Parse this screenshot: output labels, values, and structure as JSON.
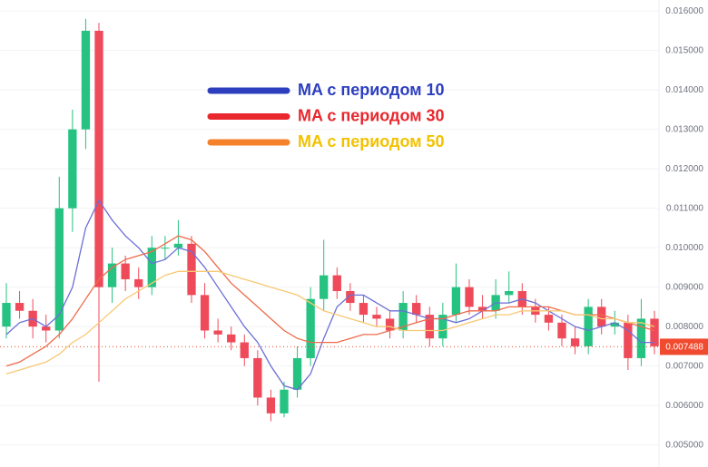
{
  "chart_data": {
    "type": "candlestick",
    "ylim": [
      0.00444,
      0.01628
    ],
    "yticks": [
      {
        "value": 0.005,
        "label": "0.005000"
      },
      {
        "value": 0.006,
        "label": "0.006000"
      },
      {
        "value": 0.007,
        "label": "0.007000"
      },
      {
        "value": 0.008,
        "label": "0.008000"
      },
      {
        "value": 0.009,
        "label": "0.009000"
      },
      {
        "value": 0.01,
        "label": "0.010000"
      },
      {
        "value": 0.011,
        "label": "0.011000"
      },
      {
        "value": 0.012,
        "label": "0.012000"
      },
      {
        "value": 0.013,
        "label": "0.013000"
      },
      {
        "value": 0.014,
        "label": "0.014000"
      },
      {
        "value": 0.015,
        "label": "0.015000"
      },
      {
        "value": 0.016,
        "label": "0.016000"
      }
    ],
    "grid": true,
    "up_color": "#26c281",
    "down_color": "#ef4a5a",
    "open": [
      0.008,
      0.0086,
      0.0084,
      0.008,
      0.0079,
      0.011,
      0.013,
      0.0155,
      0.009,
      0.0096,
      0.0092,
      0.009,
      0.01,
      0.01,
      0.0101,
      0.0088,
      0.0079,
      0.0078,
      0.0076,
      0.0072,
      0.0062,
      0.0058,
      0.0064,
      0.0072,
      0.0087,
      0.0093,
      0.0089,
      0.0086,
      0.0083,
      0.0082,
      0.0079,
      0.0086,
      0.0083,
      0.0077,
      0.0083,
      0.009,
      0.0085,
      0.0084,
      0.0088,
      0.0089,
      0.0085,
      0.0083,
      0.0081,
      0.0077,
      0.0075,
      0.0085,
      0.008,
      0.0081,
      0.0072,
      0.0082
    ],
    "high": [
      0.0091,
      0.0089,
      0.0087,
      0.0083,
      0.0118,
      0.0135,
      0.0158,
      0.0157,
      0.01,
      0.0098,
      0.0095,
      0.0103,
      0.0103,
      0.0107,
      0.0103,
      0.0091,
      0.0082,
      0.008,
      0.0078,
      0.0074,
      0.0064,
      0.0066,
      0.0075,
      0.009,
      0.0102,
      0.0095,
      0.0091,
      0.0088,
      0.0085,
      0.0084,
      0.0089,
      0.0088,
      0.0085,
      0.0086,
      0.0096,
      0.0092,
      0.0088,
      0.0092,
      0.0094,
      0.0091,
      0.0087,
      0.0085,
      0.0083,
      0.008,
      0.0087,
      0.0087,
      0.0084,
      0.0083,
      0.0087,
      0.0084
    ],
    "low": [
      0.0077,
      0.0082,
      0.0077,
      0.0076,
      0.0077,
      0.0104,
      0.0125,
      0.0066,
      0.0086,
      0.0089,
      0.0087,
      0.0088,
      0.0097,
      0.0098,
      0.0086,
      0.0077,
      0.0076,
      0.0074,
      0.007,
      0.006,
      0.0056,
      0.0057,
      0.0062,
      0.007,
      0.0084,
      0.0087,
      0.0084,
      0.0081,
      0.008,
      0.0077,
      0.0077,
      0.0081,
      0.0075,
      0.0075,
      0.0081,
      0.0083,
      0.0082,
      0.0082,
      0.0086,
      0.0083,
      0.0081,
      0.0079,
      0.0075,
      0.0073,
      0.0073,
      0.0078,
      0.0078,
      0.0069,
      0.007,
      0.0073
    ],
    "close": [
      0.0086,
      0.0084,
      0.008,
      0.0079,
      0.011,
      0.013,
      0.0155,
      0.009,
      0.0096,
      0.0092,
      0.009,
      0.01,
      0.01,
      0.0101,
      0.0088,
      0.0079,
      0.0078,
      0.0076,
      0.0072,
      0.0062,
      0.0058,
      0.0064,
      0.0072,
      0.0087,
      0.0093,
      0.0089,
      0.0086,
      0.0083,
      0.0082,
      0.0079,
      0.0086,
      0.0083,
      0.0077,
      0.0083,
      0.009,
      0.0085,
      0.0084,
      0.0088,
      0.0089,
      0.0085,
      0.0083,
      0.0081,
      0.0077,
      0.0075,
      0.0085,
      0.008,
      0.0081,
      0.0072,
      0.0082,
      0.0075
    ],
    "series": [
      {
        "name": "MA с периодом 10",
        "color": "#6b6fd6",
        "legend_color": "#2d3fbf",
        "label_color": "#2d3fbf",
        "values": [
          0.0078,
          0.0081,
          0.0082,
          0.008,
          0.0083,
          0.009,
          0.0105,
          0.0112,
          0.0107,
          0.0103,
          0.01,
          0.0096,
          0.0097,
          0.01,
          0.0099,
          0.0095,
          0.009,
          0.0085,
          0.008,
          0.0076,
          0.007,
          0.0065,
          0.0064,
          0.0068,
          0.0077,
          0.0085,
          0.0088,
          0.0088,
          0.0086,
          0.0084,
          0.0084,
          0.0083,
          0.0082,
          0.0082,
          0.0081,
          0.0082,
          0.0084,
          0.0086,
          0.0086,
          0.0087,
          0.0086,
          0.0084,
          0.0082,
          0.008,
          0.0079,
          0.008,
          0.0081,
          0.0079,
          0.0076,
          0.0076
        ]
      },
      {
        "name": "MA с периодом 30",
        "color": "#ef6a4a",
        "legend_color": "#e8272e",
        "label_color": "#e8272e",
        "values": [
          0.007,
          0.0071,
          0.0073,
          0.0075,
          0.0078,
          0.0082,
          0.0087,
          0.0092,
          0.0095,
          0.0097,
          0.0098,
          0.0099,
          0.0101,
          0.0103,
          0.0102,
          0.0099,
          0.0095,
          0.0091,
          0.0088,
          0.0085,
          0.0082,
          0.0079,
          0.0077,
          0.0076,
          0.0076,
          0.0076,
          0.0077,
          0.0078,
          0.0078,
          0.0079,
          0.008,
          0.0081,
          0.0082,
          0.0082,
          0.0083,
          0.0084,
          0.0084,
          0.0084,
          0.0085,
          0.0085,
          0.0085,
          0.0085,
          0.0084,
          0.0083,
          0.0083,
          0.0083,
          0.0082,
          0.0081,
          0.008,
          0.0079
        ]
      },
      {
        "name": "MA с периодом 50",
        "color": "#f7c873",
        "legend_color": "#f5822a",
        "label_color": "#f2c200",
        "values": [
          0.0068,
          0.0069,
          0.007,
          0.0071,
          0.0073,
          0.0076,
          0.0078,
          0.0081,
          0.0084,
          0.0087,
          0.0089,
          0.0091,
          0.0093,
          0.0094,
          0.0094,
          0.0094,
          0.0094,
          0.0093,
          0.0092,
          0.0091,
          0.009,
          0.0089,
          0.0088,
          0.0086,
          0.0084,
          0.0083,
          0.0082,
          0.0081,
          0.008,
          0.008,
          0.0079,
          0.0079,
          0.0079,
          0.0079,
          0.008,
          0.0081,
          0.0082,
          0.0083,
          0.0083,
          0.0084,
          0.0084,
          0.0084,
          0.0084,
          0.0083,
          0.0083,
          0.0082,
          0.0082,
          0.0081,
          0.0081,
          0.008
        ]
      }
    ],
    "last_price": {
      "value": 0.007488,
      "label": "0.007488",
      "color": "#f04a2f"
    }
  }
}
